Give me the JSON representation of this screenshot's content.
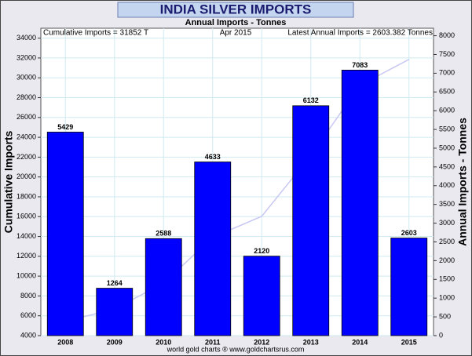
{
  "chart_data": {
    "type": "bar",
    "title": "INDIA SILVER IMPORTS",
    "subtitle": "Annual Imports - Tonnes",
    "annotations": [
      "Cumulative Imports = 31852 T",
      "Apr 2015",
      "Latest Annual Imports = 2603.382 Tonnes"
    ],
    "ylabel": "Cumulative Imports",
    "y2label": "Annual Imports - Tonnes",
    "footer": "world gold charts ® www.goldchartsrus.com",
    "categories": [
      "2008",
      "2009",
      "2010",
      "2011",
      "2012",
      "2013",
      "2014",
      "2015"
    ],
    "series": [
      {
        "type": "line",
        "axis": "y",
        "color": "#c8c8f4",
        "values": [
          5429,
          6693,
          9281,
          13914,
          16034,
          22166,
          29249,
          31852
        ]
      },
      {
        "type": "bar",
        "axis": "y2",
        "color": "#0000ff",
        "values": [
          5429,
          1264,
          2588,
          4633,
          2120,
          6132,
          7083,
          2603
        ]
      }
    ],
    "ylim": [
      4000,
      35000
    ],
    "yticks": [
      4000,
      6000,
      8000,
      10000,
      12000,
      14000,
      16000,
      18000,
      20000,
      22000,
      24000,
      26000,
      28000,
      30000,
      32000,
      34000
    ],
    "y2lim": [
      0,
      8200
    ],
    "y2ticks": [
      0,
      500,
      1000,
      1500,
      2000,
      2500,
      3000,
      3500,
      4000,
      4500,
      5000,
      5500,
      6000,
      6500,
      7000,
      7500,
      8000
    ],
    "grid": true
  }
}
